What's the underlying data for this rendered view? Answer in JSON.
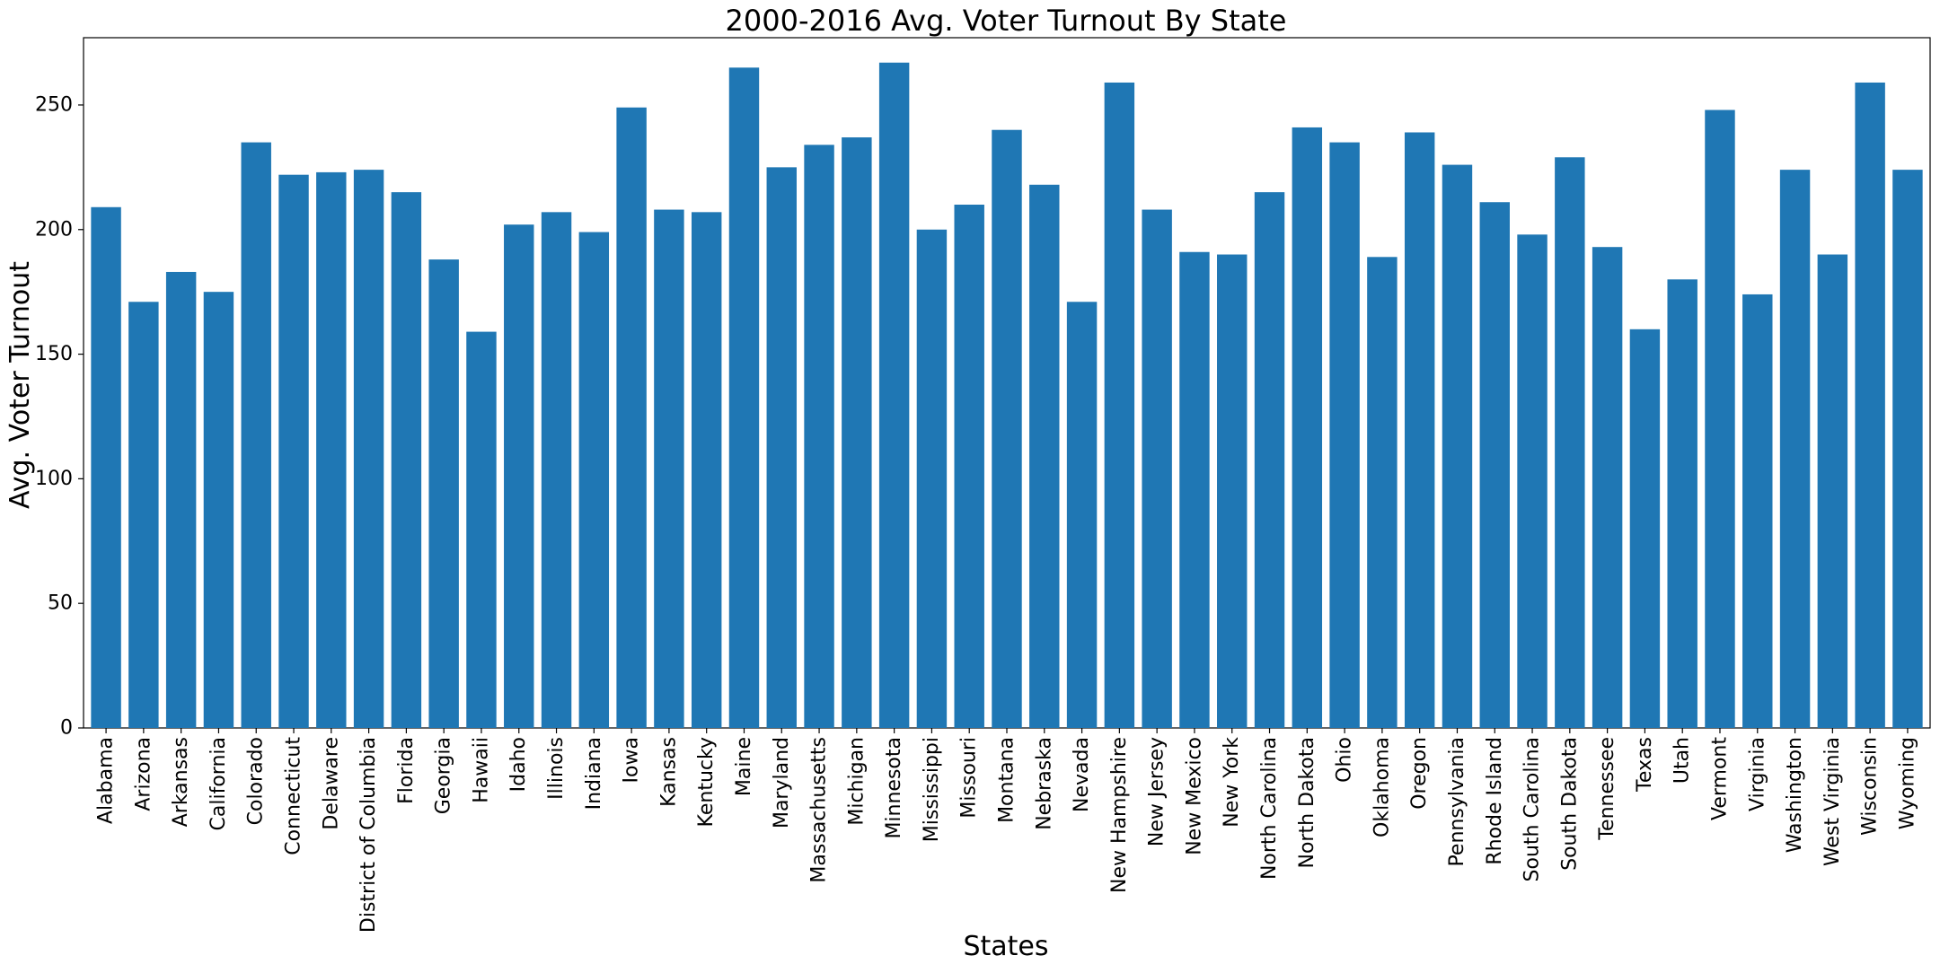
{
  "chart_data": {
    "type": "bar",
    "title": "2000-2016 Avg. Voter Turnout By State",
    "xlabel": "States",
    "ylabel": "Avg. Voter Turnout",
    "ylim": [
      0,
      277
    ],
    "yticks": [
      0,
      50,
      100,
      150,
      200,
      250
    ],
    "grid": false,
    "bar_color": "#1f77b4",
    "categories": [
      "Alabama",
      "Arizona",
      "Arkansas",
      "California",
      "Colorado",
      "Connecticut",
      "Delaware",
      "District of Columbia",
      "Florida",
      "Georgia",
      "Hawaii",
      "Idaho",
      "Illinois",
      "Indiana",
      "Iowa",
      "Kansas",
      "Kentucky",
      "Maine",
      "Maryland",
      "Massachusetts",
      "Michigan",
      "Minnesota",
      "Mississippi",
      "Missouri",
      "Montana",
      "Nebraska",
      "Nevada",
      "New Hampshire",
      "New Jersey",
      "New Mexico",
      "New York",
      "North Carolina",
      "North Dakota",
      "Ohio",
      "Oklahoma",
      "Oregon",
      "Pennsylvania",
      "Rhode Island",
      "South Carolina",
      "South Dakota",
      "Tennessee",
      "Texas",
      "Utah",
      "Vermont",
      "Virginia",
      "Washington",
      "West Virginia",
      "Wisconsin",
      "Wyoming"
    ],
    "values": [
      209,
      171,
      183,
      175,
      235,
      222,
      223,
      224,
      215,
      188,
      159,
      202,
      207,
      199,
      249,
      208,
      207,
      265,
      225,
      234,
      237,
      267,
      200,
      210,
      240,
      218,
      171,
      259,
      208,
      191,
      190,
      215,
      241,
      235,
      189,
      239,
      226,
      211,
      198,
      229,
      193,
      160,
      180,
      248,
      174,
      224,
      190,
      259,
      224
    ]
  }
}
